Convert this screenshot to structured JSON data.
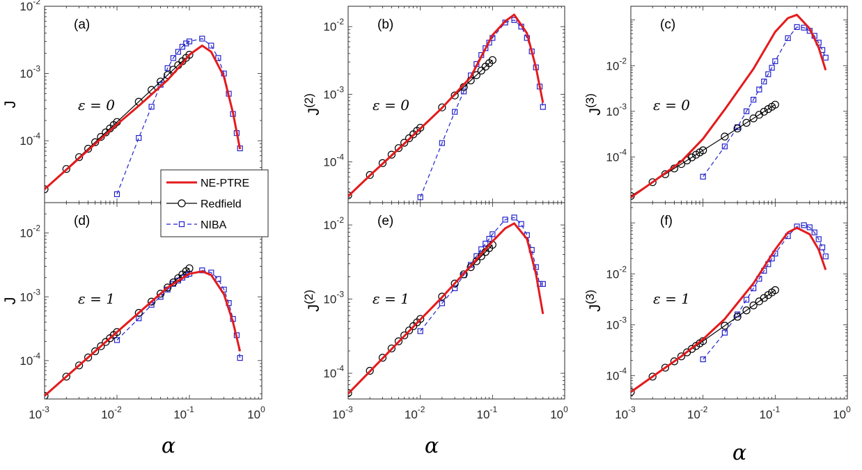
{
  "chart_data": {
    "type": "line",
    "xscale": "log",
    "yscale": "log",
    "xlim": [
      0.001,
      1
    ],
    "legend": {
      "placement": "inside-left-middle",
      "entries": [
        {
          "name": "NE-PTRE",
          "color": "#e41a1c",
          "marker": "none",
          "style": "solid"
        },
        {
          "name": "Redfield",
          "color": "#000000",
          "marker": "circle",
          "style": "solid"
        },
        {
          "name": "NIBA",
          "color": "#2222cc",
          "marker": "square",
          "style": "dashed"
        }
      ]
    },
    "x_label": "α",
    "panels": [
      {
        "label": "(a)",
        "ylabel_base": "J",
        "ylabel_sup": "",
        "annotation": "ε = 0",
        "ylim": [
          1.2e-05,
          0.01
        ],
        "y_ticks": [
          {
            "value": 0.0001,
            "base": "10",
            "exp": "-4"
          },
          {
            "value": 0.001,
            "base": "10",
            "exp": "-3"
          },
          {
            "value": 0.01,
            "base": "10",
            "exp": "-2"
          }
        ],
        "series": [
          {
            "name": "NE-PTRE",
            "x": [
              0.001,
              0.002,
              0.005,
              0.01,
              0.02,
              0.05,
              0.08,
              0.1,
              0.15,
              0.2,
              0.3,
              0.4,
              0.5
            ],
            "y": [
              1.9e-05,
              3.7e-05,
              9e-05,
              0.000175,
              0.00033,
              0.0008,
              0.0014,
              0.0019,
              0.0026,
              0.0021,
              0.0009,
              0.00026,
              7.5e-05
            ]
          },
          {
            "name": "Redfield",
            "x": [
              0.001,
              0.002,
              0.003,
              0.004,
              0.005,
              0.006,
              0.007,
              0.008,
              0.009,
              0.01,
              0.02,
              0.03,
              0.04,
              0.05,
              0.06,
              0.07,
              0.08,
              0.09,
              0.1
            ],
            "y": [
              1.9e-05,
              3.8e-05,
              5.7e-05,
              7.6e-05,
              9.5e-05,
              0.000114,
              0.000133,
              0.000152,
              0.000171,
              0.00019,
              0.00038,
              0.00057,
              0.00076,
              0.00095,
              0.00114,
              0.00133,
              0.00152,
              0.00171,
              0.0019
            ]
          },
          {
            "name": "NIBA",
            "x": [
              0.01,
              0.02,
              0.03,
              0.04,
              0.05,
              0.06,
              0.07,
              0.08,
              0.09,
              0.1,
              0.15,
              0.2,
              0.25,
              0.3,
              0.35,
              0.4,
              0.45,
              0.5
            ],
            "y": [
              1.6e-05,
              0.00011,
              0.00032,
              0.00068,
              0.0012,
              0.0017,
              0.0021,
              0.0025,
              0.0028,
              0.003,
              0.0033,
              0.0026,
              0.0017,
              0.001,
              0.0005,
              0.00025,
              0.00013,
              7.7e-05
            ]
          }
        ]
      },
      {
        "label": "(b)",
        "ylabel_base": "J",
        "ylabel_sup": "(2)",
        "annotation": "ε = 0",
        "ylim": [
          2.5e-05,
          0.02
        ],
        "y_ticks": [
          {
            "value": 0.0001,
            "base": "10",
            "exp": "-4"
          },
          {
            "value": 0.001,
            "base": "10",
            "exp": "-3"
          },
          {
            "value": 0.01,
            "base": "10",
            "exp": "-2"
          }
        ],
        "series": [
          {
            "name": "NE-PTRE",
            "x": [
              0.001,
              0.002,
              0.005,
              0.01,
              0.02,
              0.05,
              0.1,
              0.15,
              0.2,
              0.3,
              0.4,
              0.5
            ],
            "y": [
              3.1e-05,
              6.3e-05,
              0.000155,
              0.00031,
              0.00063,
              0.0018,
              0.0075,
              0.012,
              0.015,
              0.008,
              0.0025,
              0.00075
            ]
          },
          {
            "name": "Redfield",
            "x": [
              0.001,
              0.002,
              0.003,
              0.004,
              0.005,
              0.006,
              0.007,
              0.008,
              0.009,
              0.01,
              0.02,
              0.03,
              0.04,
              0.05,
              0.06,
              0.07,
              0.08,
              0.09,
              0.1
            ],
            "y": [
              3.2e-05,
              6.4e-05,
              9.6e-05,
              0.000128,
              0.00016,
              0.000192,
              0.000224,
              0.000256,
              0.000288,
              0.00032,
              0.00064,
              0.00096,
              0.00128,
              0.0016,
              0.00192,
              0.00224,
              0.00256,
              0.00288,
              0.0032
            ]
          },
          {
            "name": "NIBA",
            "x": [
              0.01,
              0.02,
              0.03,
              0.04,
              0.05,
              0.06,
              0.07,
              0.08,
              0.09,
              0.1,
              0.15,
              0.2,
              0.25,
              0.3,
              0.35,
              0.4,
              0.45,
              0.5
            ],
            "y": [
              3e-05,
              0.00019,
              0.00055,
              0.0011,
              0.0019,
              0.0028,
              0.0038,
              0.0048,
              0.0058,
              0.0068,
              0.0115,
              0.0125,
              0.01,
              0.0068,
              0.0043,
              0.0025,
              0.0013,
              0.00065
            ]
          }
        ]
      },
      {
        "label": "(c)",
        "ylabel_base": "J",
        "ylabel_sup": "(3)",
        "annotation": "ε = 0",
        "ylim": [
          1e-05,
          0.2
        ],
        "y_ticks": [
          {
            "value": 0.0001,
            "base": "10",
            "exp": "-4"
          },
          {
            "value": 0.001,
            "base": "10",
            "exp": "-3"
          },
          {
            "value": 0.01,
            "base": "10",
            "exp": "-2"
          }
        ],
        "series": [
          {
            "name": "NE-PTRE",
            "x": [
              0.001,
              0.002,
              0.005,
              0.01,
              0.02,
              0.05,
              0.1,
              0.15,
              0.2,
              0.3,
              0.4,
              0.5
            ],
            "y": [
              1.3e-05,
              2.8e-05,
              8e-05,
              0.00025,
              0.0011,
              0.0085,
              0.055,
              0.11,
              0.13,
              0.065,
              0.025,
              0.008
            ]
          },
          {
            "name": "Redfield",
            "x": [
              0.001,
              0.002,
              0.003,
              0.004,
              0.005,
              0.006,
              0.007,
              0.008,
              0.009,
              0.01,
              0.02,
              0.03,
              0.04,
              0.05,
              0.06,
              0.07,
              0.08,
              0.09,
              0.1
            ],
            "y": [
              1.4e-05,
              2.8e-05,
              4.2e-05,
              5.6e-05,
              7e-05,
              8.4e-05,
              9.8e-05,
              0.000112,
              0.000126,
              0.00014,
              0.00028,
              0.00042,
              0.00056,
              0.0007,
              0.00084,
              0.00098,
              0.00112,
              0.00126,
              0.0014
            ]
          },
          {
            "name": "NIBA",
            "x": [
              0.01,
              0.02,
              0.03,
              0.04,
              0.05,
              0.06,
              0.07,
              0.08,
              0.09,
              0.1,
              0.15,
              0.2,
              0.25,
              0.3,
              0.35,
              0.4,
              0.45,
              0.5
            ],
            "y": [
              3.7e-05,
              0.00017,
              0.00045,
              0.001,
              0.0018,
              0.003,
              0.0045,
              0.0065,
              0.009,
              0.0125,
              0.04,
              0.07,
              0.068,
              0.058,
              0.045,
              0.032,
              0.022,
              0.015
            ]
          }
        ]
      },
      {
        "label": "(d)",
        "ylabel_base": "J",
        "ylabel_sup": "",
        "annotation": "ε = 1",
        "ylim": [
          2.5e-05,
          0.03
        ],
        "y_ticks": [
          {
            "value": 0.0001,
            "base": "10",
            "exp": "-4"
          },
          {
            "value": 0.001,
            "base": "10",
            "exp": "-3"
          },
          {
            "value": 0.01,
            "base": "10",
            "exp": "-2"
          }
        ],
        "series": [
          {
            "name": "NE-PTRE",
            "x": [
              0.001,
              0.002,
              0.005,
              0.01,
              0.02,
              0.05,
              0.1,
              0.15,
              0.2,
              0.3,
              0.4,
              0.5
            ],
            "y": [
              2.8e-05,
              5.6e-05,
              0.00014,
              0.00028,
              0.00056,
              0.0014,
              0.0023,
              0.0025,
              0.0022,
              0.0011,
              0.0004,
              0.00014
            ]
          },
          {
            "name": "Redfield",
            "x": [
              0.001,
              0.002,
              0.003,
              0.004,
              0.005,
              0.006,
              0.007,
              0.008,
              0.009,
              0.01,
              0.02,
              0.03,
              0.04,
              0.05,
              0.06,
              0.07,
              0.08,
              0.09,
              0.1
            ],
            "y": [
              2.8e-05,
              5.6e-05,
              8.4e-05,
              0.000112,
              0.00014,
              0.000168,
              0.000196,
              0.000224,
              0.000252,
              0.00028,
              0.00056,
              0.00084,
              0.00112,
              0.0014,
              0.00168,
              0.00196,
              0.00224,
              0.00252,
              0.0028
            ]
          },
          {
            "name": "NIBA",
            "x": [
              0.01,
              0.02,
              0.03,
              0.04,
              0.05,
              0.06,
              0.07,
              0.08,
              0.09,
              0.1,
              0.15,
              0.2,
              0.25,
              0.3,
              0.35,
              0.4,
              0.45,
              0.5
            ],
            "y": [
              0.00021,
              0.00046,
              0.00075,
              0.001,
              0.0013,
              0.0016,
              0.0018,
              0.002,
              0.0022,
              0.0023,
              0.0026,
              0.0024,
              0.0019,
              0.0013,
              0.0008,
              0.00045,
              0.00025,
              0.00011
            ]
          }
        ]
      },
      {
        "label": "(e)",
        "ylabel_base": "J",
        "ylabel_sup": "(2)",
        "annotation": "ε = 1",
        "ylim": [
          4.5e-05,
          0.02
        ],
        "y_ticks": [
          {
            "value": 0.0001,
            "base": "10",
            "exp": "-4"
          },
          {
            "value": 0.001,
            "base": "10",
            "exp": "-3"
          },
          {
            "value": 0.01,
            "base": "10",
            "exp": "-2"
          }
        ],
        "series": [
          {
            "name": "NE-PTRE",
            "x": [
              0.001,
              0.002,
              0.005,
              0.01,
              0.02,
              0.05,
              0.1,
              0.15,
              0.2,
              0.3,
              0.4,
              0.5
            ],
            "y": [
              5.3e-05,
              0.000106,
              0.000265,
              0.00053,
              0.00106,
              0.0028,
              0.006,
              0.009,
              0.0105,
              0.0065,
              0.0022,
              0.00063
            ]
          },
          {
            "name": "Redfield",
            "x": [
              0.001,
              0.002,
              0.003,
              0.004,
              0.005,
              0.006,
              0.007,
              0.008,
              0.009,
              0.01,
              0.02,
              0.03,
              0.04,
              0.05,
              0.06,
              0.07,
              0.08,
              0.09,
              0.1
            ],
            "y": [
              5.4e-05,
              0.000108,
              0.000162,
              0.000216,
              0.00027,
              0.000324,
              0.000378,
              0.000432,
              0.000486,
              0.00054,
              0.00108,
              0.00162,
              0.00216,
              0.0027,
              0.00324,
              0.00378,
              0.00432,
              0.00486,
              0.0054
            ]
          },
          {
            "name": "NIBA",
            "x": [
              0.01,
              0.02,
              0.03,
              0.04,
              0.05,
              0.06,
              0.07,
              0.08,
              0.09,
              0.1,
              0.15,
              0.2,
              0.25,
              0.3,
              0.35,
              0.4,
              0.45,
              0.5
            ],
            "y": [
              0.00037,
              0.00088,
              0.0014,
              0.0021,
              0.0029,
              0.0038,
              0.0047,
              0.0056,
              0.0065,
              0.0075,
              0.0118,
              0.0126,
              0.0103,
              0.0073,
              0.0046,
              0.0027,
              0.0016,
              0.0016
            ]
          }
        ]
      },
      {
        "label": "(f)",
        "ylabel_base": "J",
        "ylabel_sup": "(3)",
        "annotation": "ε = 1",
        "ylim": [
          3.5e-05,
          0.25
        ],
        "y_ticks": [
          {
            "value": 0.0001,
            "base": "10",
            "exp": "-4"
          },
          {
            "value": 0.001,
            "base": "10",
            "exp": "-3"
          },
          {
            "value": 0.01,
            "base": "10",
            "exp": "-2"
          }
        ],
        "series": [
          {
            "name": "NE-PTRE",
            "x": [
              0.001,
              0.002,
              0.005,
              0.01,
              0.02,
              0.05,
              0.1,
              0.15,
              0.2,
              0.3,
              0.4,
              0.5
            ],
            "y": [
              4.8e-05,
              9.6e-05,
              0.00024,
              0.00052,
              0.0013,
              0.0065,
              0.03,
              0.065,
              0.08,
              0.06,
              0.03,
              0.012
            ]
          },
          {
            "name": "Redfield",
            "x": [
              0.001,
              0.002,
              0.003,
              0.004,
              0.005,
              0.006,
              0.007,
              0.008,
              0.009,
              0.01,
              0.02,
              0.03,
              0.04,
              0.05,
              0.06,
              0.07,
              0.08,
              0.09,
              0.1
            ],
            "y": [
              4.8e-05,
              9.6e-05,
              0.000144,
              0.000192,
              0.00024,
              0.000288,
              0.000336,
              0.000384,
              0.000432,
              0.00048,
              0.00096,
              0.00144,
              0.00192,
              0.0024,
              0.00288,
              0.00336,
              0.00384,
              0.00432,
              0.0048
            ]
          },
          {
            "name": "NIBA",
            "x": [
              0.01,
              0.02,
              0.03,
              0.04,
              0.05,
              0.06,
              0.07,
              0.08,
              0.09,
              0.1,
              0.15,
              0.2,
              0.25,
              0.3,
              0.35,
              0.4,
              0.45,
              0.5
            ],
            "y": [
              0.00021,
              0.0007,
              0.0016,
              0.0031,
              0.0052,
              0.008,
              0.0115,
              0.0155,
              0.02,
              0.025,
              0.055,
              0.085,
              0.09,
              0.082,
              0.065,
              0.048,
              0.033,
              0.022
            ]
          }
        ]
      }
    ],
    "x_ticks": [
      {
        "value": 0.001,
        "base": "10",
        "exp": "-3"
      },
      {
        "value": 0.01,
        "base": "10",
        "exp": "-2"
      },
      {
        "value": 0.1,
        "base": "10",
        "exp": "-1"
      },
      {
        "value": 1,
        "base": "10",
        "exp": "0"
      }
    ]
  }
}
